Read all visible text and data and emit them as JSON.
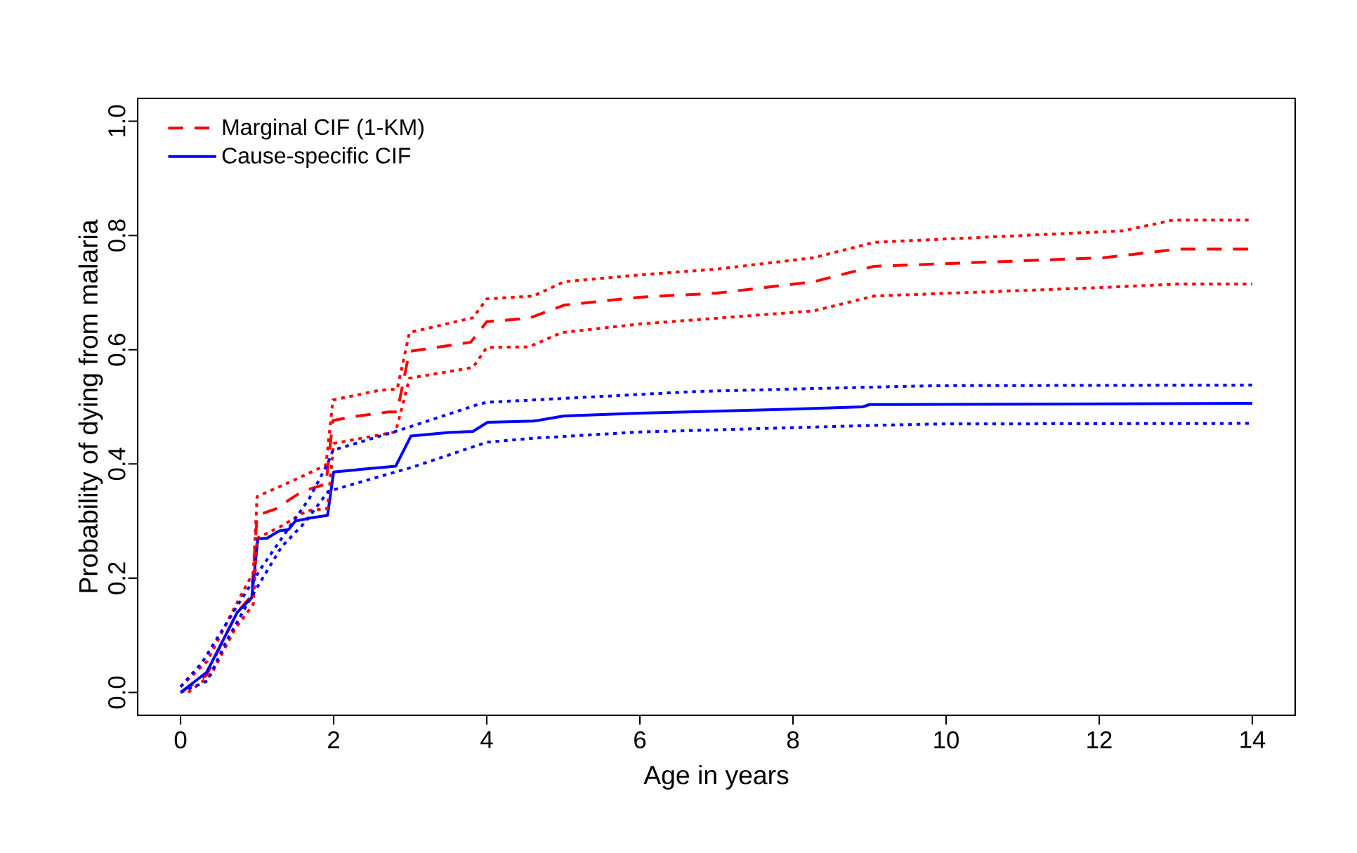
{
  "chart_data": {
    "type": "line",
    "xlabel": "Age in years",
    "ylabel": "Probability of dying from malaria",
    "xlim": [
      -0.56,
      14.56
    ],
    "ylim": [
      -0.04,
      1.04
    ],
    "xticks": [
      0,
      2,
      4,
      6,
      8,
      10,
      12,
      14
    ],
    "yticks": [
      {
        "value": 0,
        "label": "0.0"
      },
      {
        "value": 0.2,
        "label": "0.2"
      },
      {
        "value": 0.4,
        "label": "0.4"
      },
      {
        "value": 0.6,
        "label": "0.6"
      },
      {
        "value": 0.8,
        "label": "0.8"
      },
      {
        "value": 1,
        "label": "1.0"
      }
    ],
    "grid": false,
    "legend": "top left",
    "marker": "none",
    "series": [
      {
        "name": "Marginal CIF (1-KM)",
        "color": "#ff0000",
        "line_style": "dashed",
        "x": [
          0,
          0.34,
          0.55,
          0.74,
          0.93,
          1.0,
          1.26,
          1.44,
          1.59,
          1.9,
          1.99,
          2.26,
          2.72,
          2.83,
          2.99,
          3.39,
          3.79,
          4.0,
          4.55,
          5.01,
          6,
          7,
          8.27,
          9.06,
          12.06,
          13.03,
          14
        ],
        "values": [
          0,
          0.03,
          0.09,
          0.14,
          0.17,
          0.31,
          0.322,
          0.339,
          0.352,
          0.365,
          0.476,
          0.483,
          0.491,
          0.491,
          0.597,
          0.605,
          0.613,
          0.649,
          0.655,
          0.678,
          0.692,
          0.699,
          0.719,
          0.746,
          0.761,
          0.776,
          0.776
        ]
      },
      {
        "name": "Cause-specific CIF",
        "color": "#0000ff",
        "line_style": "solid",
        "x": [
          0,
          0.34,
          0.55,
          0.74,
          0.93,
          1.01,
          1.13,
          1.29,
          1.41,
          1.5,
          1.68,
          1.92,
          2.0,
          2.48,
          2.81,
          3.01,
          3.51,
          3.82,
          4.01,
          4.61,
          5.01,
          6,
          8,
          8.91,
          9.0,
          14
        ],
        "values": [
          0,
          0.035,
          0.09,
          0.14,
          0.166,
          0.269,
          0.27,
          0.283,
          0.285,
          0.3,
          0.305,
          0.31,
          0.386,
          0.392,
          0.396,
          0.449,
          0.455,
          0.457,
          0.473,
          0.475,
          0.484,
          0.489,
          0.496,
          0.5,
          0.504,
          0.506
        ]
      },
      {
        "color": "#ff0000",
        "line_style": "dotted",
        "x": [
          0,
          0.35,
          0.75,
          0.95,
          1.0,
          1.44,
          1.9,
          1.99,
          2.6,
          2.83,
          2.99,
          3.82,
          4.0,
          4.61,
          5.01,
          6,
          7,
          8.27,
          9.06,
          12.3,
          12.97,
          14
        ],
        "values": [
          0.01,
          0.055,
          0.16,
          0.21,
          0.343,
          0.369,
          0.398,
          0.512,
          0.529,
          0.531,
          0.63,
          0.656,
          0.689,
          0.694,
          0.719,
          0.731,
          0.741,
          0.761,
          0.788,
          0.808,
          0.827,
          0.827
        ]
      },
      {
        "color": "#ff0000",
        "line_style": "dotted",
        "x": [
          0.1,
          0.4,
          0.71,
          0.95,
          1.0,
          1.3,
          1.65,
          1.92,
          2.0,
          2.81,
          2.99,
          3.82,
          4.0,
          4.55,
          4.98,
          6,
          8.27,
          9.06,
          12.06,
          13.03,
          14
        ],
        "values": [
          0,
          0.031,
          0.111,
          0.154,
          0.27,
          0.29,
          0.318,
          0.322,
          0.436,
          0.456,
          0.55,
          0.569,
          0.604,
          0.605,
          0.63,
          0.645,
          0.668,
          0.694,
          0.709,
          0.715,
          0.715
        ]
      },
      {
        "color": "#0000ff",
        "line_style": "dotted",
        "x": [
          0,
          0.28,
          0.71,
          1.07,
          1.44,
          1.68,
          1.93,
          1.99,
          2.81,
          3.02,
          3.88,
          4.0,
          4.61,
          6.75,
          9.19,
          9.86,
          14
        ],
        "values": [
          0.01,
          0.052,
          0.145,
          0.221,
          0.293,
          0.339,
          0.403,
          0.424,
          0.457,
          0.466,
          0.504,
          0.508,
          0.512,
          0.527,
          0.535,
          0.537,
          0.538
        ]
      },
      {
        "color": "#0000ff",
        "line_style": "dotted",
        "x": [
          0,
          0.35,
          0.6,
          0.92,
          1.32,
          1.62,
          1.93,
          2.81,
          3.02,
          4.0,
          4.61,
          6,
          9.19,
          9.86,
          14
        ],
        "values": [
          0,
          0.02,
          0.09,
          0.166,
          0.255,
          0.297,
          0.352,
          0.386,
          0.394,
          0.438,
          0.445,
          0.456,
          0.468,
          0.47,
          0.471
        ]
      }
    ]
  }
}
